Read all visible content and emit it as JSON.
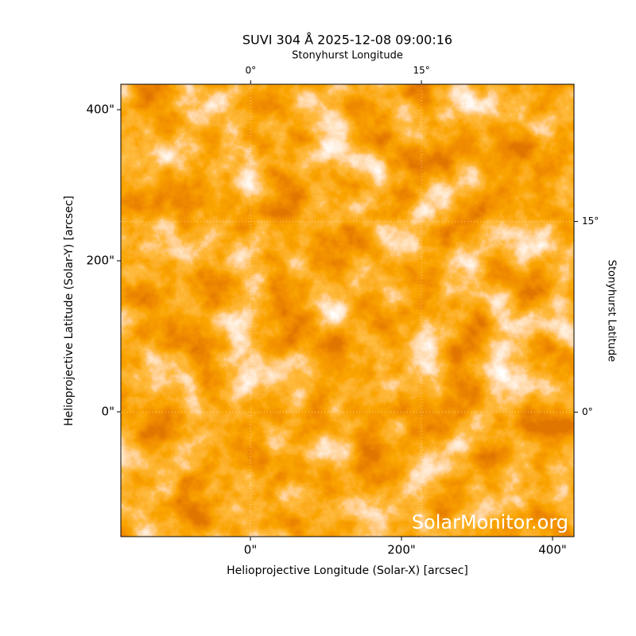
{
  "chart_data": {
    "type": "image",
    "title": "SUVI 304 Å 2025-12-08 09:00:16",
    "xlabel": "Helioprojective Longitude (Solar-X) [arcsec]",
    "ylabel": "Helioprojective Latitude (Solar-Y) [arcsec]",
    "x2label": "Stonyhurst Longitude",
    "y2label": "Stonyhurst Latitude",
    "watermark": "SolarMonitor.org",
    "xlim": [
      -171.6,
      428.4
    ],
    "ylim": [
      -165.3,
      433.7
    ],
    "xticks": [
      {
        "value": 0,
        "label": "0\""
      },
      {
        "value": 200,
        "label": "200\""
      },
      {
        "value": 400,
        "label": "400\""
      }
    ],
    "yticks": [
      {
        "value": 0,
        "label": "0\""
      },
      {
        "value": 200,
        "label": "200\""
      },
      {
        "value": 400,
        "label": "400\""
      }
    ],
    "x2lim": [
      -11.4,
      28.4
    ],
    "x2ticks": [
      {
        "value": 0,
        "label": "0°"
      },
      {
        "value": 15,
        "label": "15°"
      }
    ],
    "y2lim": [
      -9.8,
      25.8
    ],
    "y2ticks": [
      {
        "value": 0,
        "label": "0°"
      },
      {
        "value": 15,
        "label": "15°"
      }
    ],
    "grid": true
  }
}
